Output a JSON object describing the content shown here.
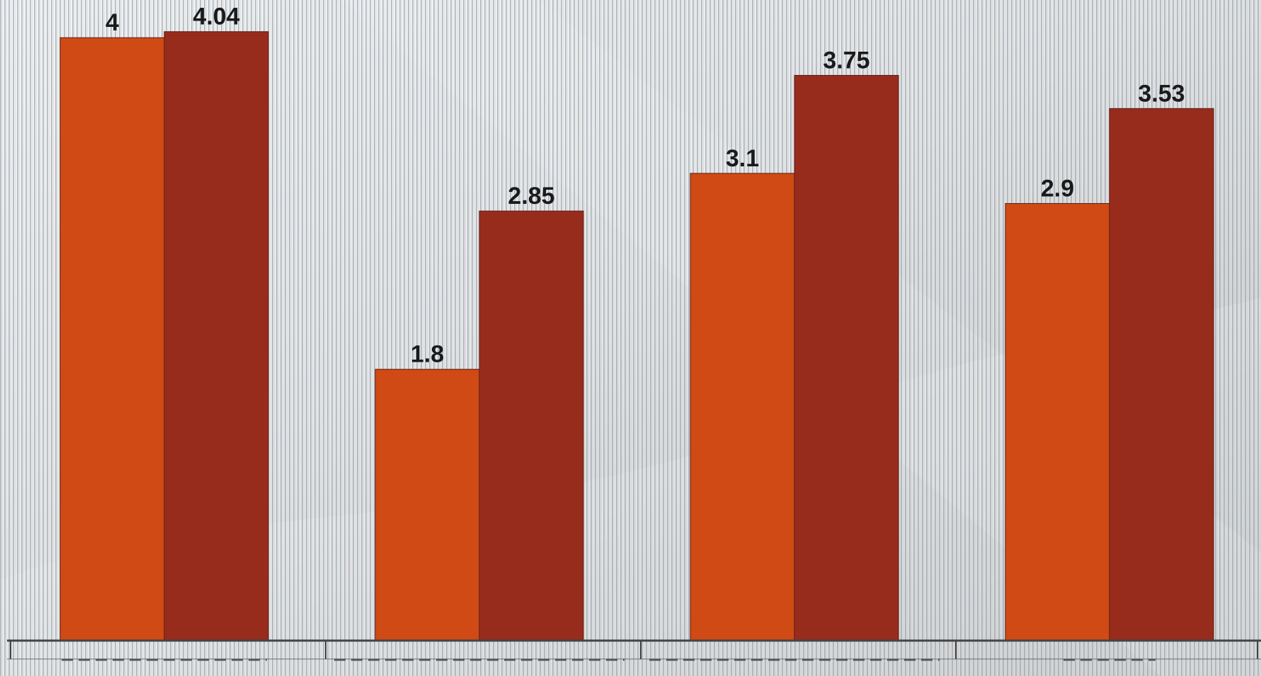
{
  "colors": {
    "series_a": "#d04a15",
    "series_b": "#982c1c",
    "label_text": "#1a1a1a",
    "axis": "#444444"
  },
  "chart_data": {
    "type": "bar",
    "title": "",
    "xlabel": "",
    "ylabel": "",
    "categories": [
      "",
      "",
      "",
      ""
    ],
    "ylim": [
      0,
      4.25
    ],
    "grid": false,
    "legend": "none",
    "series": [
      {
        "values": [
          4,
          1.8,
          3.1,
          2.9
        ]
      },
      {
        "values": [
          4.04,
          2.85,
          3.75,
          3.53
        ]
      }
    ],
    "data_labels": [
      [
        "4",
        "1.8",
        "3.1",
        "2.9"
      ],
      [
        "4.04",
        "2.85",
        "3.75",
        "3.53"
      ]
    ]
  }
}
